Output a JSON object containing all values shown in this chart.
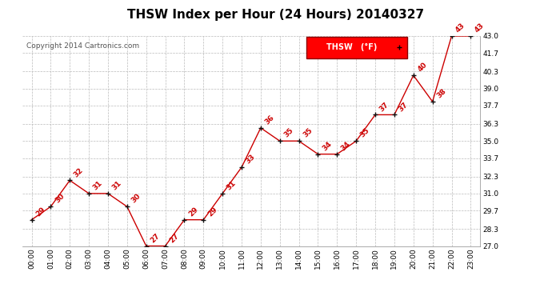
{
  "title": "THSW Index per Hour (24 Hours) 20140327",
  "copyright": "Copyright 2014 Cartronics.com",
  "legend_label": "THSW   (°F)",
  "hours": [
    "00:00",
    "01:00",
    "02:00",
    "03:00",
    "04:00",
    "05:00",
    "06:00",
    "07:00",
    "08:00",
    "09:00",
    "10:00",
    "11:00",
    "12:00",
    "13:00",
    "14:00",
    "15:00",
    "16:00",
    "17:00",
    "18:00",
    "19:00",
    "20:00",
    "21:00",
    "22:00",
    "23:00"
  ],
  "values": [
    29,
    30,
    32,
    31,
    31,
    30,
    27,
    27,
    29,
    29,
    31,
    33,
    36,
    35,
    35,
    34,
    34,
    35,
    37,
    37,
    40,
    38,
    43,
    43
  ],
  "ylim_min": 27.0,
  "ylim_max": 43.0,
  "ytick_vals": [
    27.0,
    28.3,
    29.7,
    31.0,
    32.3,
    33.7,
    35.0,
    36.3,
    37.7,
    39.0,
    40.3,
    41.7,
    43.0
  ],
  "ytick_labels": [
    "27.0",
    "28.3",
    "29.7",
    "31.0",
    "32.3",
    "33.7",
    "35.0",
    "36.3",
    "37.7",
    "39.0",
    "40.3",
    "41.7",
    "43.0"
  ],
  "line_color": "#cc0000",
  "marker_color": "#111111",
  "label_color": "#cc0000",
  "bg_color": "#ffffff",
  "grid_color": "#bbbbbb",
  "title_fontsize": 11,
  "label_fontsize": 6.5,
  "tick_fontsize": 6.5,
  "copyright_fontsize": 6.5,
  "legend_fontsize": 7
}
